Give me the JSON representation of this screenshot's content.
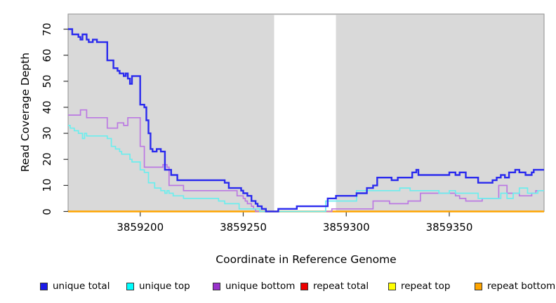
{
  "chart_data": {
    "type": "line",
    "step": true,
    "title": "",
    "xlabel": "Coordinate in Reference Genome",
    "ylabel": "Read Coverage Depth",
    "xlim": [
      3859165,
      3859396
    ],
    "ylim": [
      0,
      75.8
    ],
    "xticks": [
      3859200,
      3859250,
      3859300,
      3859350
    ],
    "xtick_labels": [
      "3859200",
      "3859250",
      "3859300",
      "3859350"
    ],
    "yticks": [
      0,
      10,
      20,
      30,
      40,
      50,
      60,
      70
    ],
    "ytick_labels": [
      "0",
      "10",
      "20",
      "30",
      "40",
      "50",
      "60",
      "70"
    ],
    "grid": false,
    "legend_position": "bottom",
    "panel_shading": {
      "fill": "#d9d9d9",
      "border": "#8f8f8f",
      "white_gap_region": [
        3859265,
        3859295
      ]
    },
    "series": [
      {
        "name": "unique total",
        "color": "#1a1ae8",
        "line_color": "#2a2aee",
        "line_width": 2.4,
        "points": [
          [
            3859165,
            70
          ],
          [
            3859167,
            68
          ],
          [
            3859170,
            67
          ],
          [
            3859171,
            66
          ],
          [
            3859172,
            68
          ],
          [
            3859174,
            66
          ],
          [
            3859175,
            65
          ],
          [
            3859177,
            66
          ],
          [
            3859179,
            65
          ],
          [
            3859184,
            58
          ],
          [
            3859187,
            55
          ],
          [
            3859189,
            54
          ],
          [
            3859190,
            53
          ],
          [
            3859192,
            52
          ],
          [
            3859193,
            53
          ],
          [
            3859194,
            51
          ],
          [
            3859195,
            49
          ],
          [
            3859196,
            52
          ],
          [
            3859200,
            41
          ],
          [
            3859202,
            40
          ],
          [
            3859203,
            35
          ],
          [
            3859204,
            30
          ],
          [
            3859205,
            24
          ],
          [
            3859206,
            23
          ],
          [
            3859208,
            24
          ],
          [
            3859210,
            23
          ],
          [
            3859212,
            16
          ],
          [
            3859215,
            14
          ],
          [
            3859218,
            12
          ],
          [
            3859241,
            11
          ],
          [
            3859243,
            9
          ],
          [
            3859249,
            8
          ],
          [
            3859250,
            7
          ],
          [
            3859252,
            6
          ],
          [
            3859254,
            4
          ],
          [
            3859256,
            3
          ],
          [
            3859257,
            2
          ],
          [
            3859259,
            1
          ],
          [
            3859261,
            0
          ],
          [
            3859267,
            1
          ],
          [
            3859276,
            2
          ],
          [
            3859291,
            5
          ],
          [
            3859295,
            6
          ],
          [
            3859305,
            7
          ],
          [
            3859310,
            9
          ],
          [
            3859313,
            10
          ],
          [
            3859315,
            13
          ],
          [
            3859322,
            12
          ],
          [
            3859325,
            13
          ],
          [
            3859332,
            15
          ],
          [
            3859334,
            16
          ],
          [
            3859335,
            14
          ],
          [
            3859350,
            15
          ],
          [
            3859353,
            14
          ],
          [
            3859355,
            15
          ],
          [
            3859358,
            13
          ],
          [
            3859364,
            11
          ],
          [
            3859371,
            12
          ],
          [
            3859373,
            13
          ],
          [
            3859375,
            14
          ],
          [
            3859377,
            13
          ],
          [
            3859379,
            15
          ],
          [
            3859382,
            16
          ],
          [
            3859384,
            15
          ],
          [
            3859387,
            14
          ],
          [
            3859390,
            15
          ],
          [
            3859391,
            16
          ]
        ]
      },
      {
        "name": "unique top",
        "color": "#00ffff",
        "line_color": "#6ceeee",
        "line_width": 1.7,
        "points": [
          [
            3859165,
            33
          ],
          [
            3859166,
            32
          ],
          [
            3859168,
            31
          ],
          [
            3859170,
            30
          ],
          [
            3859172,
            28
          ],
          [
            3859173,
            30
          ],
          [
            3859174,
            29
          ],
          [
            3859184,
            28
          ],
          [
            3859186,
            25
          ],
          [
            3859188,
            24
          ],
          [
            3859190,
            23
          ],
          [
            3859191,
            22
          ],
          [
            3859195,
            20
          ],
          [
            3859196,
            19
          ],
          [
            3859200,
            16
          ],
          [
            3859202,
            15
          ],
          [
            3859204,
            11
          ],
          [
            3859207,
            9
          ],
          [
            3859210,
            8
          ],
          [
            3859212,
            7
          ],
          [
            3859213,
            8
          ],
          [
            3859214,
            7
          ],
          [
            3859216,
            6
          ],
          [
            3859221,
            5
          ],
          [
            3859238,
            4
          ],
          [
            3859241,
            3
          ],
          [
            3859248,
            1
          ],
          [
            3859258,
            0
          ],
          [
            3859290,
            4
          ],
          [
            3859305,
            8
          ],
          [
            3859326,
            9
          ],
          [
            3859331,
            8
          ],
          [
            3859345,
            7
          ],
          [
            3859350,
            8
          ],
          [
            3859353,
            7
          ],
          [
            3859364,
            5
          ],
          [
            3859375,
            7
          ],
          [
            3859378,
            5
          ],
          [
            3859381,
            7
          ],
          [
            3859384,
            9
          ],
          [
            3859388,
            7
          ],
          [
            3859393,
            8
          ]
        ]
      },
      {
        "name": "unique bottom",
        "color": "#9932cc",
        "line_color": "#bb79e2",
        "line_width": 1.7,
        "points": [
          [
            3859165,
            37
          ],
          [
            3859171,
            39
          ],
          [
            3859174,
            36
          ],
          [
            3859184,
            32
          ],
          [
            3859189,
            34
          ],
          [
            3859192,
            33
          ],
          [
            3859194,
            36
          ],
          [
            3859200,
            25
          ],
          [
            3859202,
            17
          ],
          [
            3859211,
            18
          ],
          [
            3859213,
            17
          ],
          [
            3859214,
            10
          ],
          [
            3859221,
            8
          ],
          [
            3859247,
            6
          ],
          [
            3859250,
            5
          ],
          [
            3859251,
            4
          ],
          [
            3859252,
            3
          ],
          [
            3859254,
            2
          ],
          [
            3859255,
            1
          ],
          [
            3859256,
            0
          ],
          [
            3859293,
            1
          ],
          [
            3859313,
            4
          ],
          [
            3859321,
            3
          ],
          [
            3859330,
            4
          ],
          [
            3859336,
            7
          ],
          [
            3859353,
            6
          ],
          [
            3859355,
            5
          ],
          [
            3859358,
            4
          ],
          [
            3859366,
            5
          ],
          [
            3859374,
            10
          ],
          [
            3859378,
            7
          ],
          [
            3859384,
            6
          ],
          [
            3859390,
            7
          ],
          [
            3859392,
            8
          ]
        ]
      },
      {
        "name": "repeat total",
        "color": "#ee0000",
        "line_color": "#ee0000",
        "line_width": 2.0,
        "points": [
          [
            3859165,
            0
          ]
        ]
      },
      {
        "name": "repeat top",
        "color": "#ffff00",
        "line_color": "#ffff00",
        "line_width": 2.0,
        "points": [
          [
            3859165,
            0
          ]
        ]
      },
      {
        "name": "repeat bottom",
        "color": "#ffa500",
        "line_color": "#ffa500",
        "line_width": 2.4,
        "points": [
          [
            3859165,
            0
          ]
        ]
      }
    ]
  }
}
